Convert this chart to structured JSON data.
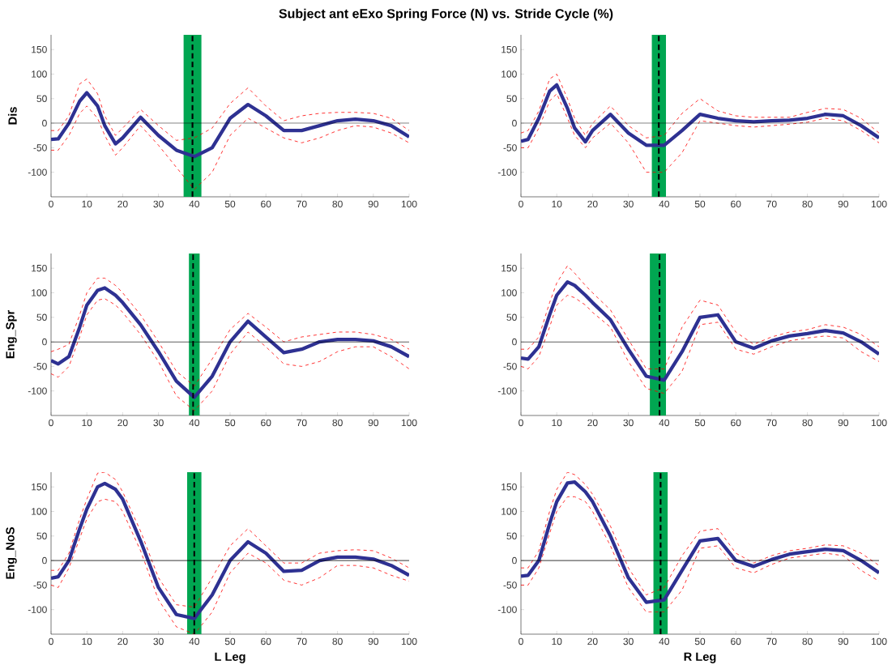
{
  "chart_data": [
    {
      "type": "line",
      "title": "Subject ant eExo Spring Force (N) vs. Stride Cycle (%)",
      "ylabel": "Dis",
      "xlim": [
        0,
        100
      ],
      "ylim": [
        -150,
        180
      ],
      "xticks": [
        0,
        10,
        20,
        30,
        40,
        50,
        60,
        70,
        80,
        90,
        100
      ],
      "yticks": [
        -100,
        -50,
        0,
        50,
        100,
        150
      ],
      "x": [
        0,
        2,
        5,
        8,
        10,
        13,
        15,
        18,
        20,
        25,
        30,
        35,
        40,
        45,
        50,
        55,
        60,
        65,
        70,
        75,
        80,
        85,
        90,
        95,
        100
      ],
      "series": [
        {
          "color": "#ff0000",
          "line_style": "dashed",
          "values": [
            -15,
            -15,
            15,
            80,
            90,
            60,
            15,
            -25,
            -10,
            28,
            -5,
            -35,
            -30,
            -10,
            40,
            72,
            35,
            5,
            15,
            20,
            22,
            22,
            20,
            10,
            -15
          ]
        },
        {
          "color": "#ff0000",
          "line_style": "dashed",
          "values": [
            -55,
            -55,
            -25,
            20,
            35,
            10,
            -25,
            -65,
            -50,
            -5,
            -45,
            -90,
            -135,
            -100,
            -25,
            10,
            -10,
            -30,
            -40,
            -30,
            -15,
            -5,
            -8,
            -20,
            -40
          ]
        },
        {
          "color": "#2e3192",
          "line_style": "solid",
          "values": [
            -33,
            -32,
            0,
            45,
            62,
            35,
            -5,
            -42,
            -30,
            12,
            -25,
            -55,
            -68,
            -50,
            10,
            38,
            15,
            -15,
            -15,
            -5,
            5,
            8,
            5,
            -5,
            -28
          ]
        }
      ],
      "bands": [
        {
          "axis": "x",
          "from": 37,
          "to": 42,
          "color": "#00a651"
        }
      ],
      "ref_lines": [
        {
          "axis": "x",
          "value": 39.5,
          "color": "#000000",
          "line_style": "dashed"
        },
        {
          "axis": "y",
          "value": 0,
          "color": "#000000"
        }
      ]
    },
    {
      "type": "line",
      "xlim": [
        0,
        100
      ],
      "ylim": [
        -150,
        180
      ],
      "xticks": [
        0,
        10,
        20,
        30,
        40,
        50,
        60,
        70,
        80,
        90,
        100
      ],
      "yticks": [
        -100,
        -50,
        0,
        50,
        100,
        150
      ],
      "x": [
        0,
        2,
        5,
        8,
        10,
        13,
        15,
        18,
        20,
        25,
        30,
        35,
        40,
        45,
        50,
        55,
        60,
        65,
        70,
        75,
        80,
        85,
        90,
        95,
        100
      ],
      "series": [
        {
          "color": "#ff0000",
          "line_style": "dashed",
          "values": [
            -20,
            -15,
            25,
            90,
            100,
            50,
            10,
            -25,
            0,
            35,
            -5,
            -30,
            -25,
            20,
            50,
            25,
            15,
            12,
            12,
            12,
            22,
            30,
            28,
            10,
            -20
          ]
        },
        {
          "color": "#ff0000",
          "line_style": "dashed",
          "values": [
            -50,
            -50,
            -10,
            45,
            60,
            10,
            -25,
            -50,
            -30,
            0,
            -40,
            -100,
            -100,
            -60,
            5,
            0,
            -5,
            -8,
            -5,
            -2,
            2,
            10,
            5,
            -15,
            -40
          ]
        },
        {
          "color": "#2e3192",
          "line_style": "solid",
          "values": [
            -37,
            -33,
            10,
            65,
            78,
            30,
            -10,
            -38,
            -15,
            18,
            -20,
            -45,
            -45,
            -15,
            18,
            10,
            5,
            3,
            5,
            6,
            10,
            18,
            15,
            -5,
            -30
          ]
        }
      ],
      "bands": [
        {
          "axis": "x",
          "from": 36.5,
          "to": 40.5,
          "color": "#00a651"
        }
      ],
      "ref_lines": [
        {
          "axis": "x",
          "value": 38.5,
          "color": "#000000",
          "line_style": "dashed"
        },
        {
          "axis": "y",
          "value": 0,
          "color": "#000000"
        }
      ]
    },
    {
      "type": "line",
      "ylabel": "Eng_Spr",
      "xlim": [
        0,
        100
      ],
      "ylim": [
        -150,
        180
      ],
      "xticks": [
        0,
        10,
        20,
        30,
        40,
        50,
        60,
        70,
        80,
        90,
        100
      ],
      "yticks": [
        -100,
        -50,
        0,
        50,
        100,
        150
      ],
      "x": [
        0,
        2,
        5,
        8,
        10,
        13,
        15,
        18,
        20,
        25,
        30,
        35,
        40,
        45,
        50,
        55,
        60,
        65,
        70,
        75,
        80,
        85,
        90,
        95,
        100
      ],
      "series": [
        {
          "color": "#ff0000",
          "line_style": "dashed",
          "values": [
            -20,
            -15,
            -5,
            55,
            100,
            130,
            130,
            115,
            100,
            55,
            0,
            -60,
            -90,
            -35,
            25,
            58,
            30,
            0,
            10,
            15,
            20,
            20,
            15,
            5,
            -15
          ]
        },
        {
          "color": "#ff0000",
          "line_style": "dashed",
          "values": [
            -65,
            -72,
            -50,
            10,
            55,
            85,
            88,
            75,
            60,
            15,
            -40,
            -110,
            -140,
            -100,
            -25,
            20,
            -10,
            -45,
            -50,
            -40,
            -20,
            -10,
            -10,
            -30,
            -55
          ]
        },
        {
          "color": "#2e3192",
          "line_style": "solid",
          "values": [
            -38,
            -45,
            -30,
            30,
            75,
            105,
            110,
            95,
            80,
            35,
            -20,
            -80,
            -113,
            -70,
            0,
            42,
            10,
            -22,
            -15,
            0,
            5,
            5,
            2,
            -10,
            -30
          ]
        }
      ],
      "bands": [
        {
          "axis": "x",
          "from": 38.5,
          "to": 41.5,
          "color": "#00a651"
        }
      ],
      "ref_lines": [
        {
          "axis": "x",
          "value": 39.7,
          "color": "#000000",
          "line_style": "dashed"
        },
        {
          "axis": "y",
          "value": 0,
          "color": "#000000"
        }
      ]
    },
    {
      "type": "line",
      "xlim": [
        0,
        100
      ],
      "ylim": [
        -150,
        180
      ],
      "xticks": [
        0,
        10,
        20,
        30,
        40,
        50,
        60,
        70,
        80,
        90,
        100
      ],
      "yticks": [
        -100,
        -50,
        0,
        50,
        100,
        150
      ],
      "x": [
        0,
        2,
        5,
        8,
        10,
        13,
        15,
        18,
        20,
        25,
        30,
        35,
        40,
        45,
        50,
        55,
        60,
        65,
        70,
        75,
        80,
        85,
        90,
        95,
        100
      ],
      "series": [
        {
          "color": "#ff0000",
          "line_style": "dashed",
          "values": [
            -15,
            -15,
            10,
            80,
            120,
            155,
            140,
            115,
            100,
            65,
            5,
            -55,
            -55,
            30,
            85,
            75,
            20,
            -5,
            10,
            20,
            25,
            35,
            30,
            15,
            -10
          ]
        },
        {
          "color": "#ff0000",
          "line_style": "dashed",
          "values": [
            -50,
            -55,
            -30,
            30,
            75,
            95,
            90,
            75,
            60,
            30,
            -40,
            -95,
            -105,
            -60,
            35,
            40,
            -15,
            -25,
            -10,
            2,
            8,
            12,
            8,
            -20,
            -40
          ]
        },
        {
          "color": "#2e3192",
          "line_style": "solid",
          "values": [
            -33,
            -35,
            -10,
            55,
            95,
            122,
            115,
            95,
            80,
            45,
            -15,
            -70,
            -78,
            -20,
            50,
            55,
            0,
            -13,
            2,
            12,
            17,
            23,
            18,
            0,
            -25
          ]
        }
      ],
      "bands": [
        {
          "axis": "x",
          "from": 36,
          "to": 40.5,
          "color": "#00a651"
        }
      ],
      "ref_lines": [
        {
          "axis": "x",
          "value": 38.7,
          "color": "#000000",
          "line_style": "dashed"
        },
        {
          "axis": "y",
          "value": 0,
          "color": "#000000"
        }
      ]
    },
    {
      "type": "line",
      "ylabel": "Eng_NoS",
      "xlabel": "L Leg",
      "xlim": [
        0,
        100
      ],
      "ylim": [
        -150,
        180
      ],
      "xticks": [
        0,
        10,
        20,
        30,
        40,
        50,
        60,
        70,
        80,
        90,
        100
      ],
      "yticks": [
        -100,
        -50,
        0,
        50,
        100,
        150
      ],
      "x": [
        0,
        2,
        5,
        8,
        10,
        13,
        15,
        18,
        20,
        25,
        30,
        35,
        40,
        45,
        50,
        55,
        60,
        65,
        70,
        75,
        80,
        85,
        90,
        95,
        100
      ],
      "series": [
        {
          "color": "#ff0000",
          "line_style": "dashed",
          "values": [
            -20,
            -20,
            15,
            85,
            125,
            178,
            180,
            165,
            140,
            60,
            -35,
            -90,
            -95,
            -35,
            30,
            65,
            30,
            -5,
            -5,
            15,
            20,
            22,
            20,
            5,
            -15
          ]
        },
        {
          "color": "#ff0000",
          "line_style": "dashed",
          "values": [
            -50,
            -55,
            -15,
            45,
            85,
            120,
            125,
            120,
            100,
            20,
            -80,
            -135,
            -150,
            -105,
            -25,
            15,
            -5,
            -40,
            -50,
            -35,
            -10,
            -10,
            -15,
            -30,
            -42
          ]
        },
        {
          "color": "#2e3192",
          "line_style": "solid",
          "values": [
            -36,
            -33,
            0,
            65,
            105,
            150,
            157,
            145,
            125,
            40,
            -55,
            -110,
            -118,
            -70,
            0,
            38,
            15,
            -22,
            -20,
            0,
            7,
            7,
            3,
            -10,
            -30
          ]
        }
      ],
      "bands": [
        {
          "axis": "x",
          "from": 38,
          "to": 42,
          "color": "#00a651"
        }
      ],
      "ref_lines": [
        {
          "axis": "x",
          "value": 40,
          "color": "#000000",
          "line_style": "dashed"
        },
        {
          "axis": "y",
          "value": 0,
          "color": "#000000"
        }
      ]
    },
    {
      "type": "line",
      "xlabel": "R Leg",
      "xlim": [
        0,
        100
      ],
      "ylim": [
        -150,
        180
      ],
      "xticks": [
        0,
        10,
        20,
        30,
        40,
        50,
        60,
        70,
        80,
        90,
        100
      ],
      "yticks": [
        -100,
        -50,
        0,
        50,
        100,
        150
      ],
      "x": [
        0,
        2,
        5,
        8,
        10,
        13,
        15,
        18,
        20,
        25,
        30,
        35,
        40,
        45,
        50,
        55,
        60,
        65,
        70,
        75,
        80,
        85,
        90,
        95,
        100
      ],
      "series": [
        {
          "color": "#ff0000",
          "line_style": "dashed",
          "values": [
            -15,
            -15,
            20,
            100,
            145,
            180,
            175,
            155,
            135,
            70,
            -15,
            -70,
            -55,
            10,
            60,
            65,
            15,
            -5,
            10,
            20,
            25,
            32,
            30,
            15,
            -10
          ]
        },
        {
          "color": "#ff0000",
          "line_style": "dashed",
          "values": [
            -50,
            -50,
            -15,
            55,
            100,
            130,
            130,
            120,
            100,
            30,
            -55,
            -105,
            -105,
            -60,
            25,
            30,
            -15,
            -25,
            -8,
            5,
            10,
            15,
            10,
            -20,
            -42
          ]
        },
        {
          "color": "#2e3192",
          "line_style": "solid",
          "values": [
            -32,
            -30,
            0,
            75,
            120,
            158,
            160,
            140,
            120,
            50,
            -35,
            -85,
            -80,
            -20,
            40,
            45,
            0,
            -12,
            2,
            13,
            18,
            23,
            20,
            0,
            -25
          ]
        }
      ],
      "bands": [
        {
          "axis": "x",
          "from": 37,
          "to": 41,
          "color": "#00a651"
        }
      ],
      "ref_lines": [
        {
          "axis": "x",
          "value": 39,
          "color": "#000000",
          "line_style": "dashed"
        },
        {
          "axis": "y",
          "value": 0,
          "color": "#000000"
        }
      ]
    }
  ]
}
